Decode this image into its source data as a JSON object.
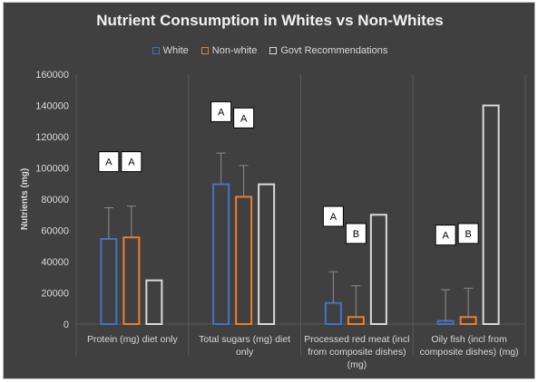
{
  "chart_data": {
    "type": "bar",
    "title": "Nutrient Consumption in Whites vs Non-Whites",
    "ylabel": "Nutrients (mg)",
    "xlabel": "",
    "ylim": [
      0,
      160000
    ],
    "yticks": [
      0,
      20000,
      40000,
      60000,
      80000,
      100000,
      120000,
      140000,
      160000
    ],
    "ytick_labels": [
      "0",
      "20000",
      "40000",
      "60000",
      "80000",
      "100000",
      "120000",
      "140000",
      "160000"
    ],
    "grid": "vertical category separators",
    "legend_position": "top",
    "categories": [
      [
        "Protein (mg) diet only"
      ],
      [
        "Total sugars (mg) diet",
        "only"
      ],
      [
        "Processed red meat (incl",
        "from composite dishes)",
        "(mg)"
      ],
      [
        "Oily fish (incl from",
        "composite dishes) (mg)"
      ]
    ],
    "series": [
      {
        "name": "White",
        "color": "#4472c4",
        "values": [
          54500,
          89500,
          13500,
          2000
        ],
        "error_top": [
          74500,
          109500,
          33500,
          22000
        ],
        "letters": [
          "A",
          "A",
          "A",
          "A"
        ]
      },
      {
        "name": "Non-white",
        "color": "#ed7d31",
        "values": [
          55500,
          81500,
          4500,
          4500
        ],
        "error_top": [
          75500,
          101500,
          24500,
          23000
        ],
        "letters": [
          "A",
          "A",
          "B",
          "B"
        ]
      },
      {
        "name": "Govt Recommendations",
        "color": "#d9d9d9",
        "values": [
          28000,
          89500,
          70000,
          140000
        ],
        "error_top": [
          null,
          null,
          null,
          null
        ],
        "letters": [
          null,
          null,
          null,
          null
        ]
      }
    ],
    "letter_positions": [
      {
        "white": 104000,
        "nonwhite": 104000
      },
      {
        "white": 136000,
        "nonwhite": 132000
      },
      {
        "white": 69000,
        "nonwhite": 58000
      },
      {
        "white": 57000,
        "nonwhite": 58000
      }
    ]
  }
}
